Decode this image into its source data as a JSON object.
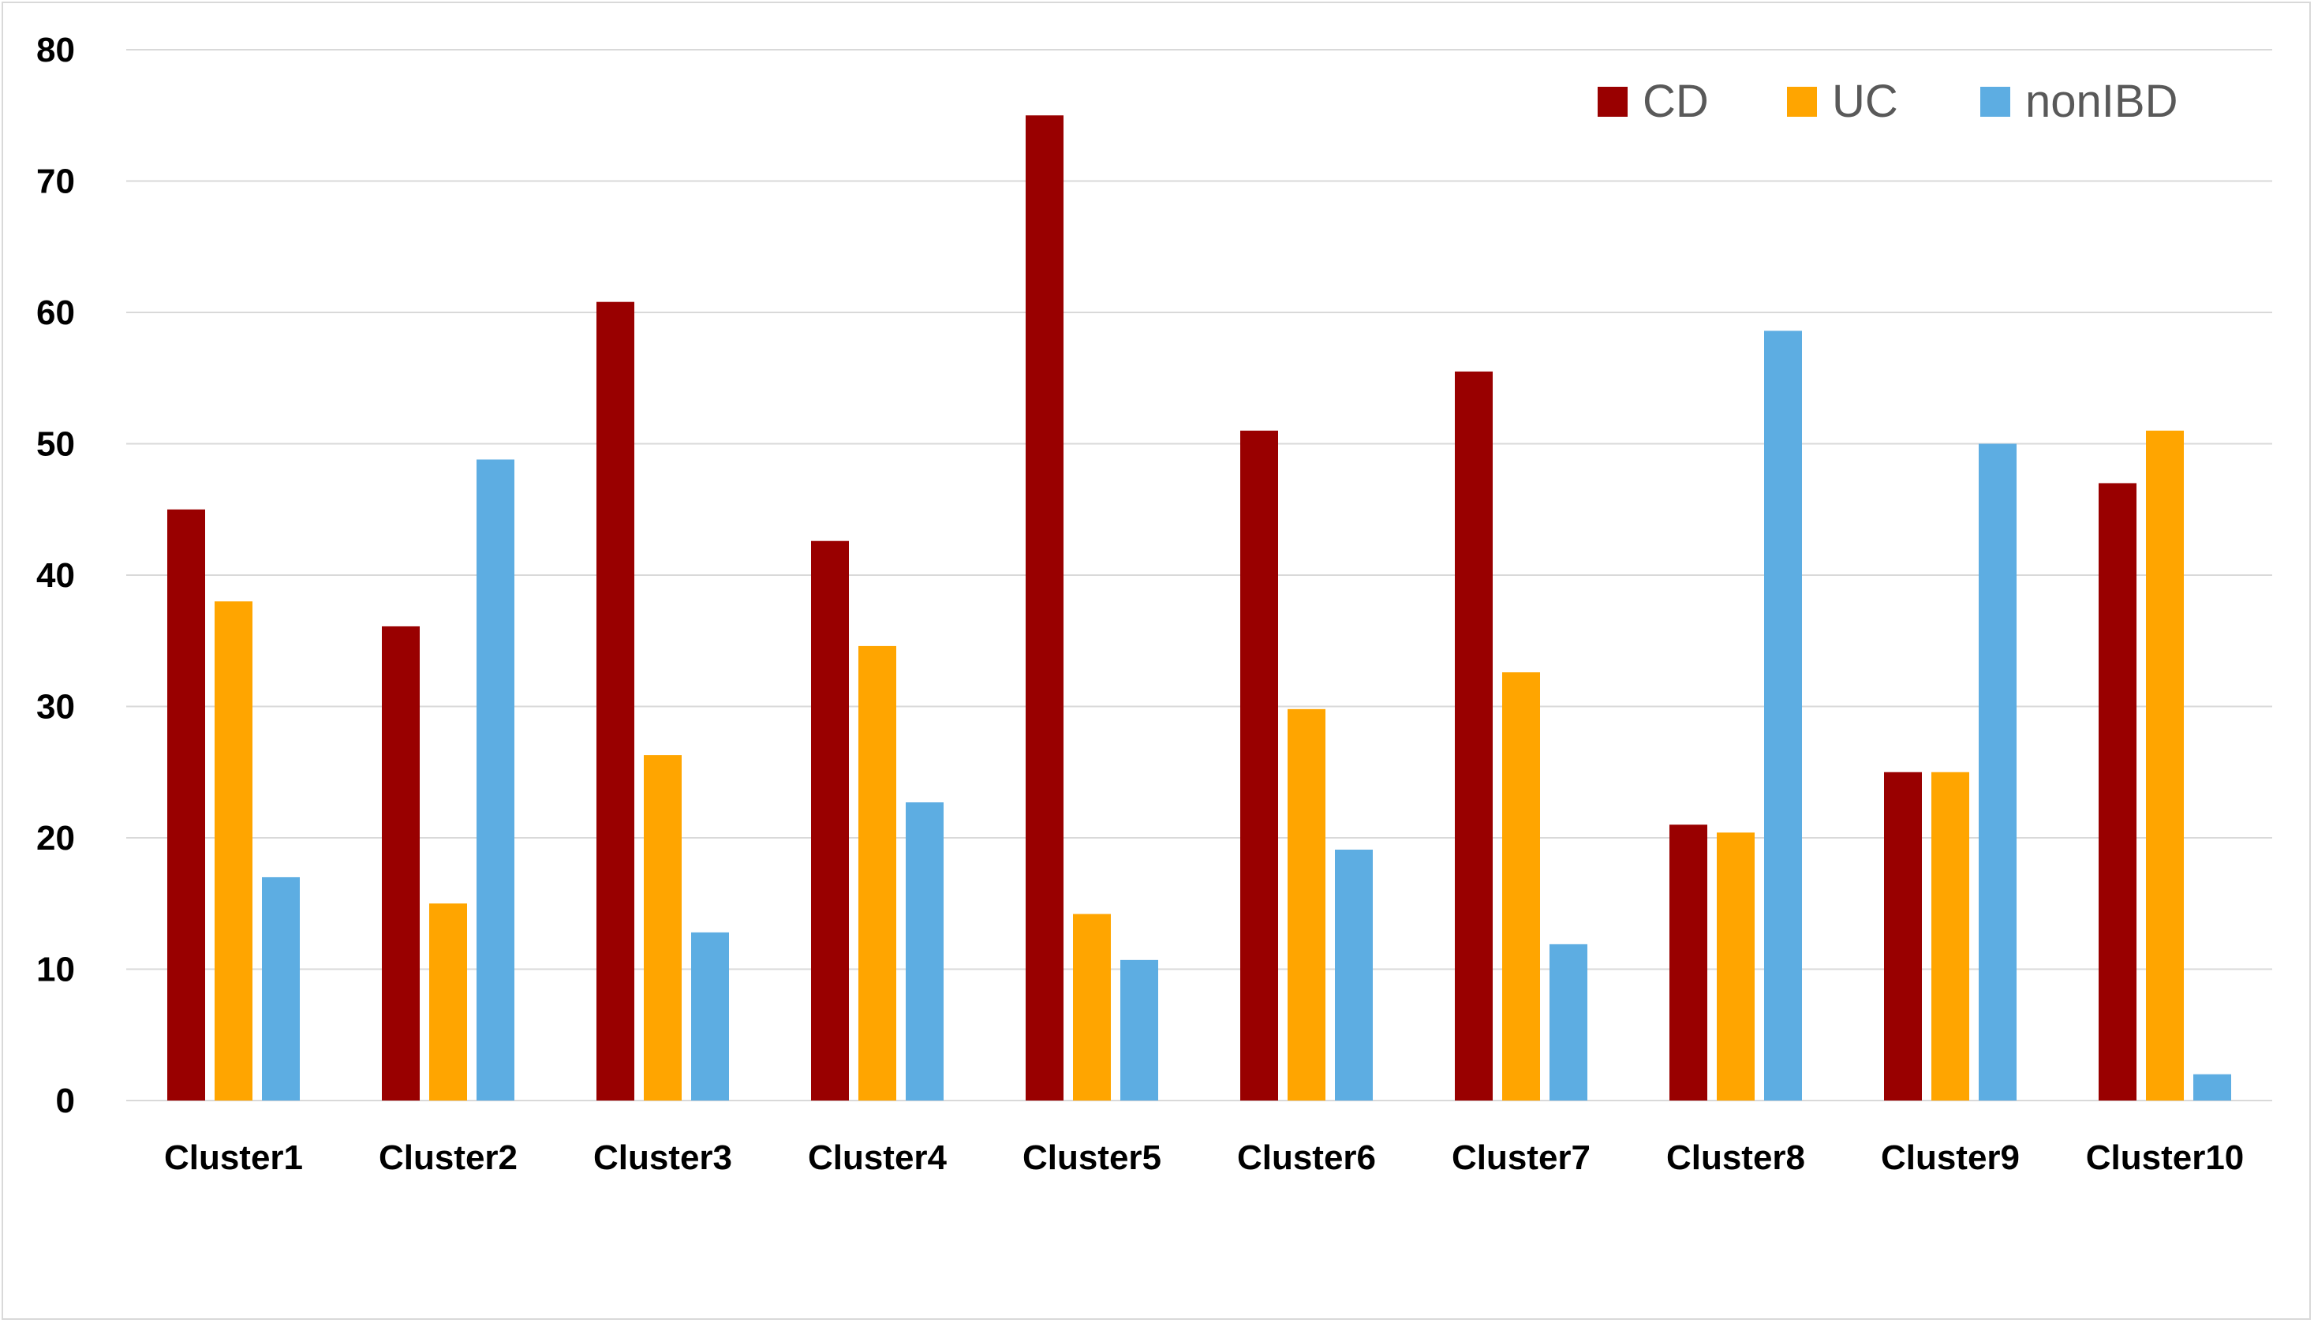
{
  "chart_data": {
    "type": "bar",
    "title": "",
    "xlabel": "",
    "ylabel": "",
    "ylim": [
      0,
      80
    ],
    "yticks": [
      0,
      10,
      20,
      30,
      40,
      50,
      60,
      70,
      80
    ],
    "grid": true,
    "legend_position": "top-right",
    "categories": [
      "Cluster1",
      "Cluster2",
      "Cluster3",
      "Cluster4",
      "Cluster5",
      "Cluster6",
      "Cluster7",
      "Cluster8",
      "Cluster9",
      "Cluster10"
    ],
    "series": [
      {
        "name": "CD",
        "color": "#990000",
        "values": [
          45,
          36.1,
          60.8,
          42.6,
          75,
          51,
          55.5,
          21,
          25,
          47
        ]
      },
      {
        "name": "UC",
        "color": "#ffa500",
        "values": [
          38,
          15,
          26.3,
          34.6,
          14.2,
          29.8,
          32.6,
          20.4,
          25,
          51
        ]
      },
      {
        "name": "nonIBD",
        "color": "#5dade2",
        "values": [
          17,
          48.8,
          12.8,
          22.7,
          10.7,
          19.1,
          11.9,
          58.6,
          50,
          2
        ]
      }
    ]
  }
}
